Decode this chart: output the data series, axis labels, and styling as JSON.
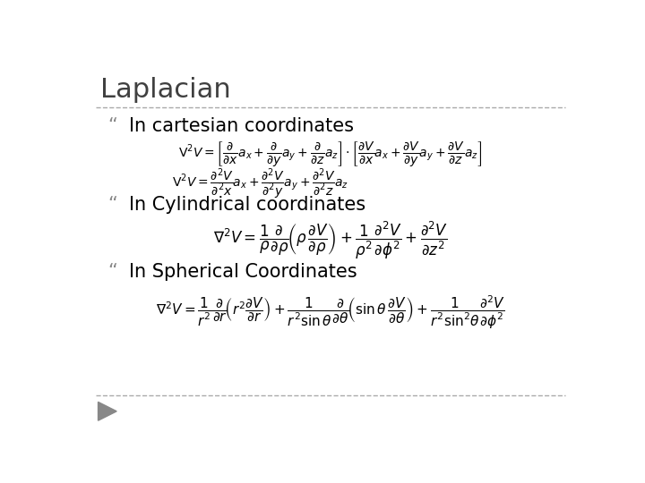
{
  "title": "Laplacian",
  "background_color": "#ffffff",
  "title_color": "#404040",
  "text_color": "#000000",
  "bullet_color": "#888888",
  "title_fontsize": 22,
  "label_fontsize": 15,
  "bullet1": "In cartesian coordinates",
  "bullet2": "In Cylindrical coordinates",
  "bullet3": "In Spherical Coordinates",
  "separator_color": "#aaaaaa",
  "footer_triangle_color": "#888888"
}
